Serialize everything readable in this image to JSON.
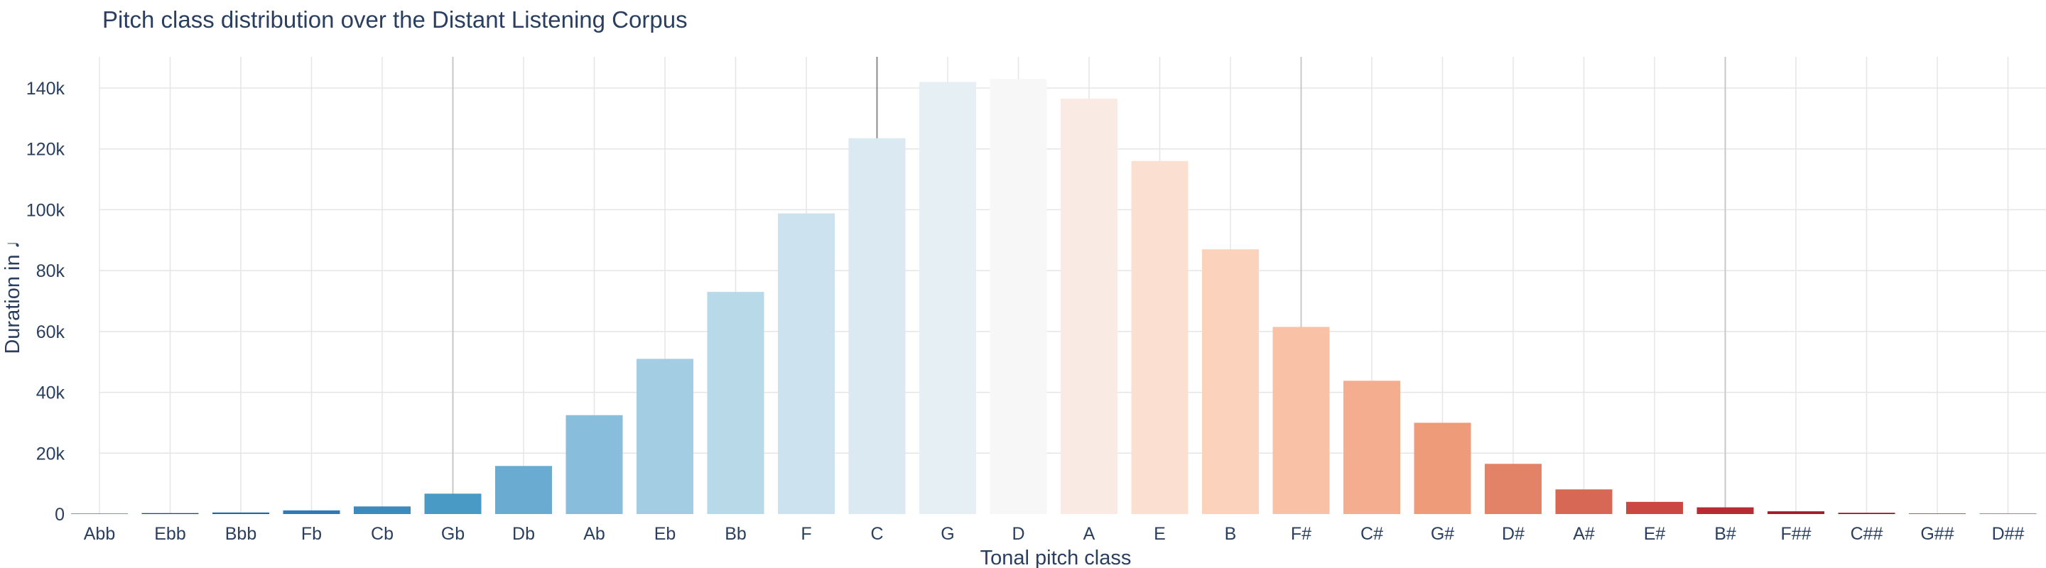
{
  "chart_data": {
    "type": "bar",
    "title": "Pitch class distribution over the Distant Listening Corpus",
    "xlabel": "Tonal pitch class",
    "ylabel": "Duration in ♩",
    "categories": [
      "Abb",
      "Ebb",
      "Bbb",
      "Fb",
      "Cb",
      "Gb",
      "Db",
      "Ab",
      "Eb",
      "Bb",
      "F",
      "C",
      "G",
      "D",
      "A",
      "E",
      "B",
      "F#",
      "C#",
      "G#",
      "D#",
      "A#",
      "E#",
      "B#",
      "F##",
      "C##",
      "G##",
      "D##"
    ],
    "values": [
      50,
      300,
      500,
      1200,
      2500,
      6700,
      15800,
      32500,
      51000,
      73000,
      98800,
      123500,
      142000,
      143000,
      136500,
      116000,
      87000,
      61500,
      43800,
      30000,
      16500,
      8100,
      4000,
      2200,
      900,
      400,
      150,
      50
    ],
    "colors": [
      "#053061",
      "#0f4a87",
      "#1f66a8",
      "#2f7ab6",
      "#3c8bbe",
      "#4a9ac6",
      "#6aabd1",
      "#88bedc",
      "#a3cde3",
      "#b8d9e8",
      "#cce2ee",
      "#dae9f2",
      "#e6eff4",
      "#f7f7f7",
      "#f9ebe4",
      "#fbe0d2",
      "#fbd2bc",
      "#f9c2a7",
      "#f4ad8e",
      "#ed9b78",
      "#e28266",
      "#d76856",
      "#c94841",
      "#b82b32",
      "#a51b2c",
      "#8e0e26",
      "#76061f",
      "#67001f"
    ],
    "yticks": [
      0,
      20000,
      40000,
      60000,
      80000,
      100000,
      120000,
      140000
    ],
    "ytick_labels": [
      "0",
      "20k",
      "40k",
      "60k",
      "80k",
      "100k",
      "120k",
      "140k"
    ],
    "ylim": [
      0,
      150000
    ],
    "grid": true,
    "reference_lines_at": [
      "Gb",
      "C",
      "F#",
      "B#"
    ]
  }
}
